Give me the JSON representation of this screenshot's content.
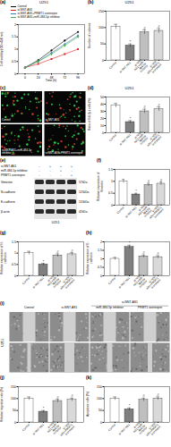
{
  "chart_data": [
    {
      "panel": "(a)",
      "type": "line",
      "title": "U251",
      "x_label": "Time (h)",
      "y_label": "Cell viability (OD=450 nm)",
      "x": [
        0,
        24,
        48,
        72,
        96
      ],
      "xlim": [
        -12,
        108
      ],
      "xticks": [
        0,
        24,
        48,
        72,
        96
      ],
      "ylim": [
        0,
        2
      ],
      "yticks": [
        0,
        0.5,
        1,
        1.5,
        2
      ],
      "legend": "top",
      "series": [
        {
          "name": "Control",
          "color": "#000000",
          "marker": "circle",
          "values": [
            0.25,
            0.55,
            0.95,
            1.35,
            1.7
          ]
        },
        {
          "name": "si-NNT-AS1",
          "color": "#e41a1c",
          "marker": "square",
          "values": [
            0.25,
            0.4,
            0.6,
            0.8,
            1.0
          ]
        },
        {
          "name": "si-NNT-AS1+PRMT1 overexpre",
          "color": "#377eb8",
          "marker": "triangle",
          "values": [
            0.25,
            0.5,
            0.85,
            1.2,
            1.55
          ]
        },
        {
          "name": "si-NNT-AS1+miR-484-5p inhibitor",
          "color": "#4daf4a",
          "marker": "diamond",
          "values": [
            0.25,
            0.5,
            0.8,
            1.15,
            1.5
          ]
        }
      ]
    },
    {
      "panel": "(b)",
      "type": "bar",
      "title": "U251",
      "y_label": "Number of colonies",
      "categories": [
        "Control",
        "si-NNT-AS1",
        "si-NNT-AS1+miR-484-5p inhibitor",
        "si-NNT-AS1+PRMT1 overexpre"
      ],
      "values": [
        102,
        45,
        86,
        90
      ],
      "errors": [
        8,
        5,
        7,
        7
      ],
      "significance": [
        null,
        "*",
        "#",
        "#"
      ],
      "colors": [
        "#ffffff",
        "#7f7f7f",
        "#bfbfbf",
        "#d9d9d9"
      ],
      "ylim": [
        0,
        150
      ],
      "yticks": [
        0,
        50,
        100,
        150
      ]
    },
    {
      "panel": "(d)",
      "type": "bar",
      "title": "U251",
      "y_label": "Ratio of EdU(+) cells (%)",
      "categories": [
        "Control",
        "si-NNT-AS1",
        "si-NNT-AS1+miR-484-5p inhibitor",
        "si-NNT-AS1+PRMT1 overexpre"
      ],
      "values": [
        38,
        15,
        30,
        33
      ],
      "errors": [
        3,
        2,
        3,
        3
      ],
      "significance": [
        null,
        "*",
        "#",
        "#"
      ],
      "colors": [
        "#ffffff",
        "#7f7f7f",
        "#bfbfbf",
        "#d9d9d9"
      ],
      "ylim": [
        0,
        50
      ],
      "yticks": [
        0,
        10,
        20,
        30,
        40,
        50
      ]
    },
    {
      "panel": "(f)",
      "type": "bar",
      "y_label": "Relative expression of Vimentin",
      "categories": [
        "Control",
        "si-NNT-AS1",
        "si-NNT-AS1+miR-484-5p inhibitor",
        "si-NNT-AS1+PRMT1 overexpre"
      ],
      "values": [
        1,
        0.45,
        0.85,
        0.9
      ],
      "errors": [
        0.08,
        0.05,
        0.07,
        0.07
      ],
      "significance": [
        null,
        "*",
        "#",
        "#"
      ],
      "colors": [
        "#ffffff",
        "#7f7f7f",
        "#bfbfbf",
        "#d9d9d9"
      ],
      "ylim": [
        0,
        1.5
      ],
      "yticks": [
        0,
        0.5,
        1,
        1.5
      ]
    },
    {
      "panel": "(g)",
      "type": "bar",
      "y_label": "Relative expression of N-cadherin",
      "categories": [
        "Control",
        "si-NNT-AS1",
        "si-NNT-AS1+miR-484-5p inhibitor",
        "si-NNT-AS1+PRMT1 overexpre"
      ],
      "values": [
        1,
        0.5,
        0.9,
        0.95
      ],
      "errors": [
        0.08,
        0.05,
        0.07,
        0.07
      ],
      "significance": [
        null,
        "*",
        "#",
        "#"
      ],
      "colors": [
        "#ffffff",
        "#7f7f7f",
        "#bfbfbf",
        "#d9d9d9"
      ],
      "ylim": [
        0,
        1.5
      ],
      "yticks": [
        0,
        0.5,
        1,
        1.5
      ]
    },
    {
      "panel": "(h)",
      "type": "bar",
      "y_label": "Relative expression of E-cadherin",
      "categories": [
        "Control",
        "si-NNT-AS1",
        "si-NNT-AS1+miR-484-5p inhibitor",
        "si-NNT-AS1+PRMT1 overexpre"
      ],
      "values": [
        1,
        1.7,
        1.15,
        1.1
      ],
      "errors": [
        0.08,
        0.1,
        0.08,
        0.08
      ],
      "significance": [
        null,
        "*",
        "#",
        "#"
      ],
      "colors": [
        "#ffffff",
        "#7f7f7f",
        "#bfbfbf",
        "#d9d9d9"
      ],
      "ylim": [
        0,
        2
      ],
      "yticks": [
        0,
        0.5,
        1,
        1.5,
        2
      ]
    },
    {
      "panel": "(j)",
      "type": "bar",
      "y_label": "Relative migration rate (%)",
      "categories": [
        "Control",
        "si-NNT-AS1",
        "si-NNT-AS1+miR-484-5p inhibitor",
        "si-NNT-AS1+PRMT1 overexpre"
      ],
      "values": [
        100,
        45,
        90,
        95
      ],
      "errors": [
        7,
        5,
        7,
        7
      ],
      "significance": [
        null,
        "*",
        "#",
        "#"
      ],
      "colors": [
        "#ffffff",
        "#7f7f7f",
        "#bfbfbf",
        "#d9d9d9"
      ],
      "ylim": [
        0,
        150
      ],
      "yticks": [
        0,
        50,
        100,
        150
      ]
    },
    {
      "panel": "(k)",
      "type": "bar",
      "y_label": "Apoptosis cells (%)",
      "categories": [
        "Control",
        "si-NNT-AS1",
        "si-NNT-AS1+miR-484-5p inhibitor",
        "si-NNT-AS1+PRMT1 overexpre"
      ],
      "values": [
        100,
        55,
        95,
        100
      ],
      "errors": [
        7,
        6,
        7,
        7
      ],
      "significance": [
        null,
        "*",
        "#",
        "#"
      ],
      "colors": [
        "#ffffff",
        "#7f7f7f",
        "#bfbfbf",
        "#d9d9d9"
      ],
      "ylim": [
        0,
        150
      ],
      "yticks": [
        0,
        50,
        100,
        150
      ]
    }
  ],
  "panel_c": {
    "panel": "(c)",
    "stain": "EdU",
    "images": [
      "Control",
      "si-NNT-AS1",
      "si-NNT-AS1+miR-484-5p inhibitor",
      "si-NNT-AS1+PRMT1 overexpre"
    ]
  },
  "panel_e": {
    "panel": "(e)",
    "cell_line": "U251",
    "conditions": [
      {
        "label": "si-NNT-AS1",
        "signs": [
          "-",
          "+",
          "+",
          "+"
        ]
      },
      {
        "label": "miR-484-5p inhibitor",
        "signs": [
          "-",
          "-",
          "+",
          "-"
        ]
      },
      {
        "label": "PRMT1 overexpre",
        "signs": [
          "-",
          "-",
          "-",
          "+"
        ]
      }
    ],
    "proteins": [
      {
        "name": "Vimentin",
        "size": "57kDa"
      },
      {
        "name": "N-cadherin",
        "size": "125kDa"
      },
      {
        "name": "E-cadherin",
        "size": "120kDa"
      },
      {
        "name": "β-actin",
        "size": "42kDa"
      }
    ]
  },
  "panel_i": {
    "panel": "(i)",
    "cell_line": "U251",
    "columns": [
      "Control",
      "si-NNT-AS1",
      {
        "group": "si-NNT-AS1",
        "columns": [
          "miR-484-5p inhibitor",
          "PRMT1 overexpre"
        ]
      }
    ]
  }
}
